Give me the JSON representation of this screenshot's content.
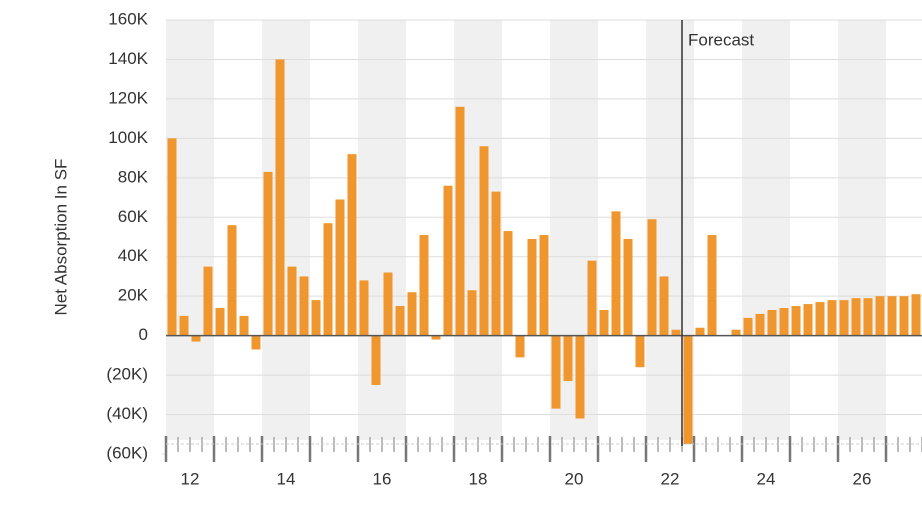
{
  "chart_data": {
    "type": "bar",
    "y_label": "Net Absorption In SF",
    "annotation": "Forecast",
    "forecast_start": 43,
    "color": "#f0962e",
    "band_color": "#f0f0f0",
    "grid": true,
    "years": [
      "12",
      null,
      "14",
      null,
      "16",
      null,
      "18",
      null,
      "20",
      null,
      "22",
      null,
      "24",
      null,
      "26",
      null
    ],
    "values": [
      100000,
      10000,
      -3000,
      35000,
      14000,
      56000,
      10000,
      -7000,
      83000,
      140000,
      35000,
      30000,
      18000,
      57000,
      69000,
      92000,
      28000,
      -25000,
      32000,
      15000,
      22000,
      51000,
      -2000,
      76000,
      116000,
      23000,
      96000,
      73000,
      53000,
      -11000,
      49000,
      51000,
      -37000,
      -23000,
      -42000,
      38000,
      13000,
      63000,
      49000,
      -16000,
      59000,
      30000,
      3000,
      -55000,
      4000,
      51000,
      0,
      3000,
      9000,
      11000,
      13000,
      14000,
      15000,
      16000,
      17000,
      18000,
      18000,
      19000,
      19000,
      20000,
      20000,
      20000,
      21000
    ],
    "ylim": [
      -60000,
      160000
    ],
    "yticks": [
      {
        "value": -60000,
        "label": "(60K)"
      },
      {
        "value": -40000,
        "label": "(40K)"
      },
      {
        "value": -20000,
        "label": "(20K)"
      },
      0,
      {
        "value": 20000,
        "label": "20K"
      },
      {
        "value": 40000,
        "label": "40K"
      },
      {
        "value": 60000,
        "label": "60K"
      },
      {
        "value": 80000,
        "label": "80K"
      },
      {
        "value": 100000,
        "label": "100K"
      },
      {
        "value": 120000,
        "label": "120K"
      },
      {
        "value": 140000,
        "label": "140K"
      },
      {
        "value": 160000,
        "label": "160K"
      }
    ]
  }
}
